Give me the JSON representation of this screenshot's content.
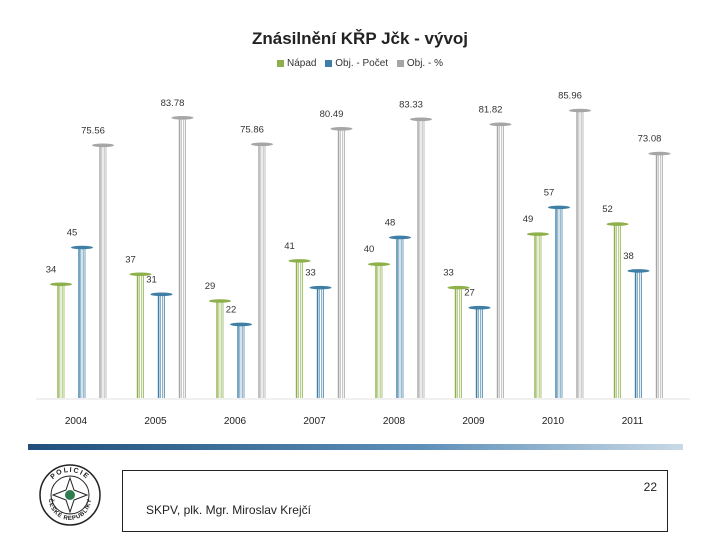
{
  "chart_data": {
    "type": "bar",
    "title": "Znásilnění KŘP Jčk - vývoj",
    "categories": [
      "2004",
      "2005",
      "2006",
      "2007",
      "2008",
      "2009",
      "2010",
      "2011"
    ],
    "series": [
      {
        "name": "Nápad",
        "color": "#8db04a",
        "values": [
          34,
          37,
          29,
          41,
          40,
          33,
          49,
          52
        ]
      },
      {
        "name": "Obj. - Počet",
        "color": "#3f7fa6",
        "values": [
          45,
          31,
          22,
          33,
          48,
          27,
          57,
          38
        ]
      },
      {
        "name": "Obj. - %",
        "color": "#a6a6a6",
        "values": [
          75.56,
          83.78,
          75.86,
          80.49,
          83.33,
          81.82,
          85.96,
          73.08
        ]
      }
    ],
    "value_labels": [
      [
        "34",
        "37",
        "29",
        "41",
        "40",
        "33",
        "49",
        "52"
      ],
      [
        "45",
        "31",
        "22",
        "33",
        "48",
        "27",
        "57",
        "38"
      ],
      [
        "75.56",
        "83.78",
        "75.86",
        "80.49",
        "83.33",
        "81.82",
        "85.96",
        "73.08"
      ]
    ],
    "xlabel": "",
    "ylabel": "",
    "ylim": [
      0,
      90
    ],
    "grid": false,
    "legend_position": "top-center"
  },
  "footer": {
    "page_number": "22",
    "author": "SKPV, plk. Mgr. Miroslav Krejčí"
  },
  "logo": {
    "text": "POLICIE ČESKÉ REPUBLIKY",
    "icon": "police-badge-icon"
  }
}
